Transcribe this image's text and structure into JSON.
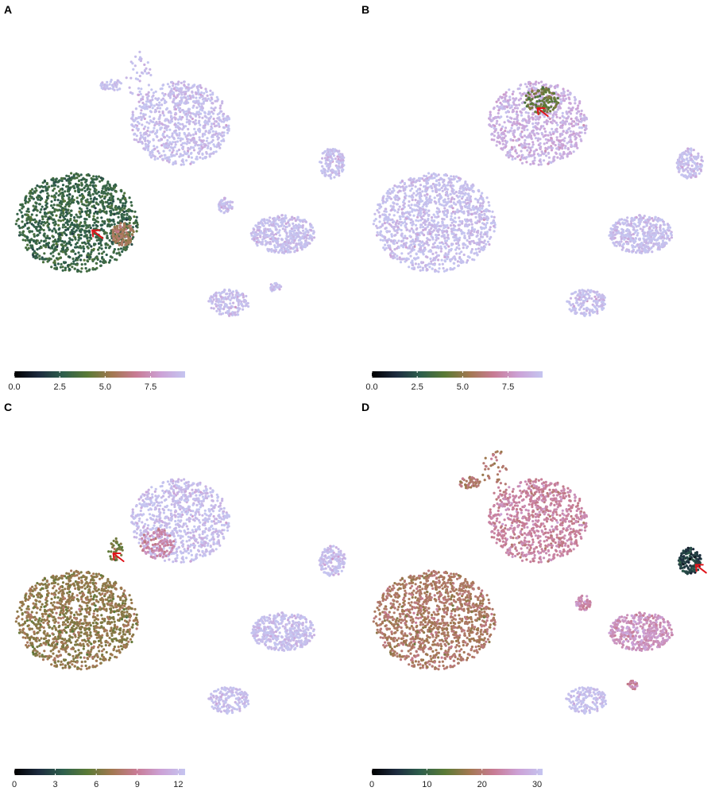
{
  "chart_data": [
    {
      "type": "scatter",
      "panel": "A",
      "colorbar": {
        "min": 0,
        "max": 9.4,
        "ticks": [
          "0.0",
          "2.5",
          "5.0",
          "7.5"
        ]
      },
      "clusters": [
        {
          "x": 0.0,
          "y": 0.0,
          "rx": 1.6,
          "ry": 1.3,
          "value": 3.0,
          "n": 1300
        },
        {
          "x": 1.2,
          "y": -0.3,
          "rx": 0.3,
          "ry": 0.3,
          "value": 5.6,
          "n": 120
        },
        {
          "x": 2.7,
          "y": 2.6,
          "rx": 1.3,
          "ry": 1.1,
          "value": 9.2,
          "n": 850
        },
        {
          "x": 1.6,
          "y": 3.9,
          "rx": 0.35,
          "ry": 0.6,
          "value": 9.2,
          "n": 40
        },
        {
          "x": 0.9,
          "y": 3.6,
          "rx": 0.3,
          "ry": 0.15,
          "value": 9.2,
          "n": 50
        },
        {
          "x": 5.4,
          "y": -0.3,
          "rx": 0.85,
          "ry": 0.5,
          "value": 9.2,
          "n": 450
        },
        {
          "x": 3.9,
          "y": 0.45,
          "rx": 0.2,
          "ry": 0.2,
          "value": 9.2,
          "n": 60
        },
        {
          "x": 6.7,
          "y": 1.55,
          "rx": 0.35,
          "ry": 0.4,
          "value": 9.2,
          "n": 150
        },
        {
          "x": 4.0,
          "y": -2.1,
          "rx": 0.55,
          "ry": 0.35,
          "value": 9.2,
          "n": 170
        },
        {
          "x": 5.2,
          "y": -1.7,
          "rx": 0.15,
          "ry": 0.12,
          "value": 9.2,
          "n": 30
        }
      ],
      "arrow": {
        "x": 0.4,
        "y": -0.2
      }
    },
    {
      "type": "scatter",
      "panel": "B",
      "colorbar": {
        "min": 0,
        "max": 9.4,
        "ticks": [
          "0.0",
          "2.5",
          "5.0",
          "7.5"
        ]
      },
      "clusters": [
        {
          "x": 0.0,
          "y": 0.0,
          "rx": 1.6,
          "ry": 1.3,
          "value": 9.2,
          "n": 1300
        },
        {
          "x": 2.7,
          "y": 2.6,
          "rx": 1.3,
          "ry": 1.1,
          "value": 8.6,
          "n": 850
        },
        {
          "x": 2.8,
          "y": 3.2,
          "rx": 0.45,
          "ry": 0.35,
          "value": 4.3,
          "n": 120
        },
        {
          "x": 5.4,
          "y": -0.3,
          "rx": 0.85,
          "ry": 0.5,
          "value": 9.2,
          "n": 450
        },
        {
          "x": 6.7,
          "y": 1.55,
          "rx": 0.35,
          "ry": 0.4,
          "value": 9.2,
          "n": 150
        },
        {
          "x": 4.0,
          "y": -2.1,
          "rx": 0.55,
          "ry": 0.35,
          "value": 9.2,
          "n": 170
        }
      ],
      "arrow": {
        "x": 2.7,
        "y": 3.0
      }
    },
    {
      "type": "scatter",
      "panel": "C",
      "colorbar": {
        "min": 0,
        "max": 12.5,
        "ticks": [
          "0",
          "3",
          "6",
          "9",
          "12"
        ]
      },
      "clusters": [
        {
          "x": 0.0,
          "y": 0.0,
          "rx": 1.6,
          "ry": 1.3,
          "value": 6.7,
          "n": 1300
        },
        {
          "x": 2.7,
          "y": 2.6,
          "rx": 1.3,
          "ry": 1.1,
          "value": 12.2,
          "n": 850
        },
        {
          "x": 2.1,
          "y": 2.0,
          "rx": 0.45,
          "ry": 0.4,
          "value": 9.5,
          "n": 120
        },
        {
          "x": 1.0,
          "y": 1.85,
          "rx": 0.2,
          "ry": 0.3,
          "value": 6.0,
          "n": 40
        },
        {
          "x": 5.4,
          "y": -0.3,
          "rx": 0.85,
          "ry": 0.5,
          "value": 12.2,
          "n": 450
        },
        {
          "x": 6.7,
          "y": 1.55,
          "rx": 0.35,
          "ry": 0.4,
          "value": 12.2,
          "n": 150
        },
        {
          "x": 4.0,
          "y": -2.1,
          "rx": 0.55,
          "ry": 0.35,
          "value": 12.2,
          "n": 170
        }
      ],
      "arrow": {
        "x": 0.95,
        "y": 1.75
      }
    },
    {
      "type": "scatter",
      "panel": "D",
      "colorbar": {
        "min": 0,
        "max": 31,
        "ticks": [
          "0",
          "10",
          "20",
          "30"
        ]
      },
      "clusters": [
        {
          "x": 0.0,
          "y": 0.0,
          "rx": 1.6,
          "ry": 1.3,
          "value": 19.0,
          "n": 1300
        },
        {
          "x": 2.7,
          "y": 2.6,
          "rx": 1.3,
          "ry": 1.1,
          "value": 23.0,
          "n": 850
        },
        {
          "x": 1.6,
          "y": 3.9,
          "rx": 0.35,
          "ry": 0.6,
          "value": 20.0,
          "n": 40
        },
        {
          "x": 0.9,
          "y": 3.6,
          "rx": 0.3,
          "ry": 0.15,
          "value": 19.5,
          "n": 50
        },
        {
          "x": 5.4,
          "y": -0.3,
          "rx": 0.85,
          "ry": 0.5,
          "value": 25.0,
          "n": 450
        },
        {
          "x": 3.9,
          "y": 0.45,
          "rx": 0.2,
          "ry": 0.2,
          "value": 24.0,
          "n": 60
        },
        {
          "x": 6.7,
          "y": 1.55,
          "rx": 0.3,
          "ry": 0.35,
          "value": 6.0,
          "n": 150
        },
        {
          "x": 4.0,
          "y": -2.1,
          "rx": 0.55,
          "ry": 0.35,
          "value": 30.5,
          "n": 170
        },
        {
          "x": 5.2,
          "y": -1.7,
          "rx": 0.15,
          "ry": 0.12,
          "value": 23.0,
          "n": 30
        }
      ],
      "arrow": {
        "x": 6.85,
        "y": 1.45
      }
    }
  ],
  "colormap": [
    "#000000",
    "#1d2b3f",
    "#2e5f4c",
    "#5a7a36",
    "#a27850",
    "#c87b94",
    "#cca1d6",
    "#c5c5f0"
  ]
}
